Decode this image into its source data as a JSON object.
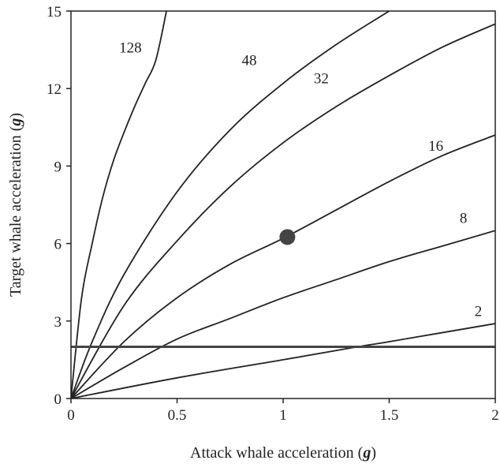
{
  "chart_data": {
    "type": "line",
    "title": "",
    "xlabel": "Attack whale acceleration (g)",
    "ylabel": "Target whale acceleration (g)",
    "xlabel_parts": [
      "Attack whale acceleration (",
      "g",
      ")"
    ],
    "ylabel_parts": [
      "Target whale acceleration (",
      "g",
      ")"
    ],
    "xlim": [
      0,
      2
    ],
    "ylim": [
      0,
      15
    ],
    "x_ticks": [
      "0",
      "0.5",
      "1",
      "1.5",
      "2"
    ],
    "y_ticks": [
      "0",
      "3",
      "6",
      "9",
      "12",
      "15"
    ],
    "grid": false,
    "series": [
      {
        "name": "128",
        "x": [
          0,
          0.05,
          0.1,
          0.15,
          0.2,
          0.25,
          0.3,
          0.35,
          0.4,
          0.45
        ],
        "y": [
          0,
          3.9,
          6.0,
          7.8,
          9.2,
          10.3,
          11.3,
          12.2,
          13.1,
          15.0
        ]
      },
      {
        "name": "48",
        "x": [
          0,
          0.1,
          0.25,
          0.5,
          0.75,
          1.0,
          1.25,
          1.5
        ],
        "y": [
          0,
          2.2,
          4.8,
          8.0,
          10.4,
          12.2,
          13.7,
          15.0
        ]
      },
      {
        "name": "32",
        "x": [
          0,
          0.25,
          0.5,
          0.75,
          1.0,
          1.25,
          1.5,
          1.75,
          2.0
        ],
        "y": [
          0,
          3.6,
          6.1,
          8.2,
          9.9,
          11.3,
          12.5,
          13.6,
          14.5
        ]
      },
      {
        "name": "16",
        "x": [
          0,
          0.25,
          0.5,
          0.75,
          1.0,
          1.25,
          1.5,
          1.75,
          2.0
        ],
        "y": [
          0,
          2.2,
          3.9,
          5.2,
          6.2,
          7.3,
          8.4,
          9.4,
          10.2
        ]
      },
      {
        "name": "8",
        "x": [
          0,
          0.25,
          0.5,
          0.75,
          1.0,
          1.25,
          1.5,
          1.75,
          2.0
        ],
        "y": [
          0,
          1.2,
          2.3,
          3.1,
          3.9,
          4.6,
          5.3,
          5.9,
          6.5
        ]
      },
      {
        "name": "2",
        "x": [
          0,
          0.5,
          1.0,
          1.35,
          1.5,
          2.0
        ],
        "y": [
          0,
          0.8,
          1.5,
          2.0,
          2.2,
          2.9
        ]
      }
    ],
    "curve_labels": [
      {
        "text": "128",
        "x": 0.28,
        "y": 13.4
      },
      {
        "text": "48",
        "x": 0.84,
        "y": 12.9
      },
      {
        "text": "32",
        "x": 1.18,
        "y": 12.2
      },
      {
        "text": "16",
        "x": 1.72,
        "y": 9.6
      },
      {
        "text": "8",
        "x": 1.85,
        "y": 6.8
      },
      {
        "text": "2",
        "x": 1.92,
        "y": 3.2
      }
    ],
    "reference_line": {
      "y": 2
    },
    "highlight_point": {
      "x": 1.02,
      "y": 6.25
    }
  }
}
